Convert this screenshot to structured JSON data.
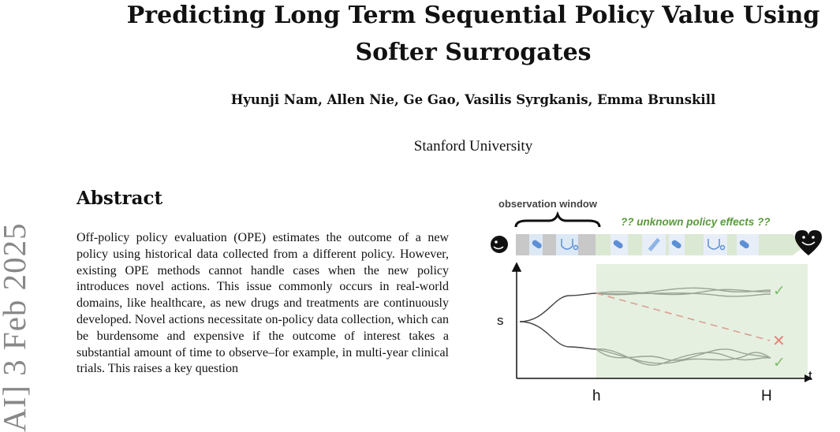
{
  "side_stamp": "AI] 3 Feb 2025",
  "paper": {
    "title_line1": "Predicting Long Term Sequential Policy Value Using",
    "title_line2": "Softer Surrogates",
    "authors": "Hyunji Nam, Allen Nie, Ge Gao, Vasilis Syrgkanis, Emma Brunskill",
    "affiliation": "Stanford University"
  },
  "abstract": {
    "heading": "Abstract",
    "text": "Off-policy policy evaluation (OPE) estimates the outcome of a new policy using historical data collected from a different policy. However, existing OPE methods cannot handle cases when the new policy introduces novel actions. This issue commonly occurs in real-world domains, like healthcare, as new drugs and treatments are continuously developed. Novel actions necessitate on-policy data collection, which can be burdensome and expensive if the outcome of interest takes a substantial amount of time to observe–for example, in multi-year clinical trials. This raises a key question"
  },
  "figure": {
    "observation_window": "observation window",
    "unknown_effects": "?? unknown policy effects ??",
    "s_label": "s",
    "t_label": "t",
    "h_label": "h",
    "H_label": "H",
    "check_symbol": "✓",
    "cross_symbol": "✕",
    "colors": {
      "region": "#e6f0e1",
      "bar_grey": "#c8c8c8",
      "bar_green": "#dbe8d3",
      "curve": "#9aa496",
      "check": "#7fbf6a",
      "cross": "#e2857a",
      "dashed": "#d9a094"
    }
  }
}
